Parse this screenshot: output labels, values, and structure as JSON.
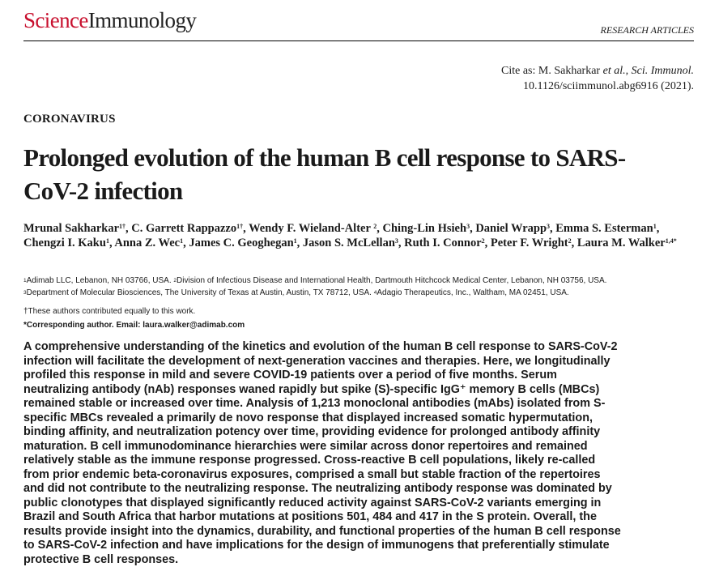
{
  "header": {
    "journal_science": "Science",
    "journal_immunology": "Immunology",
    "section_type": "RESEARCH ARTICLES"
  },
  "citation": {
    "prefix": "Cite as: M. Sakharkar ",
    "etal": "et al.",
    "separator": ", ",
    "journal": "Sci. Immunol.",
    "doi_line": "10.1126/sciimmunol.abg6916 (2021)."
  },
  "article": {
    "category": "CORONAVIRUS",
    "title_lines": [
      "Prolonged evolution of the human B cell response to SARS-",
      "CoV-2 infection"
    ]
  },
  "authors": {
    "list": [
      {
        "name": "Mrunal Sakharkar",
        "sup": "1†"
      },
      {
        "name": "C. Garrett Rappazzo",
        "sup": "1†"
      },
      {
        "name": "Wendy F. Wieland-Alter ",
        "sup": "2"
      },
      {
        "name": "Ching-Lin Hsieh",
        "sup": "3"
      },
      {
        "name": "Daniel Wrapp",
        "sup": "3"
      },
      {
        "name": "Emma S. Esterman",
        "sup": "1"
      },
      {
        "name": "Chengzi I. Kaku",
        "sup": "1"
      },
      {
        "name": "Anna Z. Wec",
        "sup": "1"
      },
      {
        "name": "James C. Geoghegan",
        "sup": "1"
      },
      {
        "name": "Jason S. McLellan",
        "sup": "3"
      },
      {
        "name": "Ruth I. Connor",
        "sup": "2"
      },
      {
        "name": "Peter F. Wright",
        "sup": "2"
      },
      {
        "name": "Laura M. Walker",
        "sup": "1,4*"
      }
    ]
  },
  "affiliations": {
    "line1": [
      {
        "sup": "1",
        "text": "Adimab LLC, Lebanon, NH 03766, USA. "
      },
      {
        "sup": "2",
        "text": "Division of Infectious Disease and International Health,  Dartmouth Hitchcock Medical Center, Lebanon, NH 03756, USA."
      }
    ],
    "line2": [
      {
        "sup": "3",
        "text": "Department of Molecular Biosciences, The University of Texas at Austin, Austin, TX 78712, USA. "
      },
      {
        "sup": "4",
        "text": "Adagio Therapeutics, Inc., Waltham, MA 02451, USA."
      }
    ]
  },
  "notes": {
    "equal_contribution": "†These authors contributed equally to this work.",
    "corresponding": "*Corresponding author. Email: laura.walker@adimab.com"
  },
  "abstract": {
    "lines": [
      "A comprehensive understanding of the kinetics and evolution of the human B cell response to SARS-CoV-2",
      "infection will facilitate the development of next-generation vaccines and therapies. Here, we longitudinally",
      "profiled this response in mild and severe COVID-19 patients over a period of five months. Serum",
      "neutralizing antibody (nAb) responses waned rapidly but spike (S)-specific IgG⁺ memory B cells (MBCs)",
      "remained stable or increased over time. Analysis of 1,213 monoclonal antibodies (mAbs) isolated from S-",
      "specific MBCs revealed a primarily de novo response that displayed increased somatic hypermutation,",
      "binding affinity, and neutralization potency over time, providing evidence for prolonged antibody affinity",
      "maturation. B cell immunodominance hierarchies were similar across donor repertoires and remained",
      "relatively stable as the immune response progressed. Cross-reactive B cell populations, likely re-called",
      "from prior endemic beta-coronavirus exposures, comprised a small but stable fraction of the repertoires",
      "and did not contribute to the neutralizing response. The neutralizing antibody response was dominated by",
      "public clonotypes that displayed significantly reduced activity against SARS-CoV-2 variants emerging in",
      "Brazil and South Africa that harbor mutations at positions 501, 484 and 417 in the S protein. Overall, the",
      "results provide insight into the dynamics, durability, and functional properties of the human B cell response",
      "to SARS-CoV-2 infection and have implications for the design of immunogens that preferentially stimulate",
      "protective B cell responses."
    ]
  }
}
